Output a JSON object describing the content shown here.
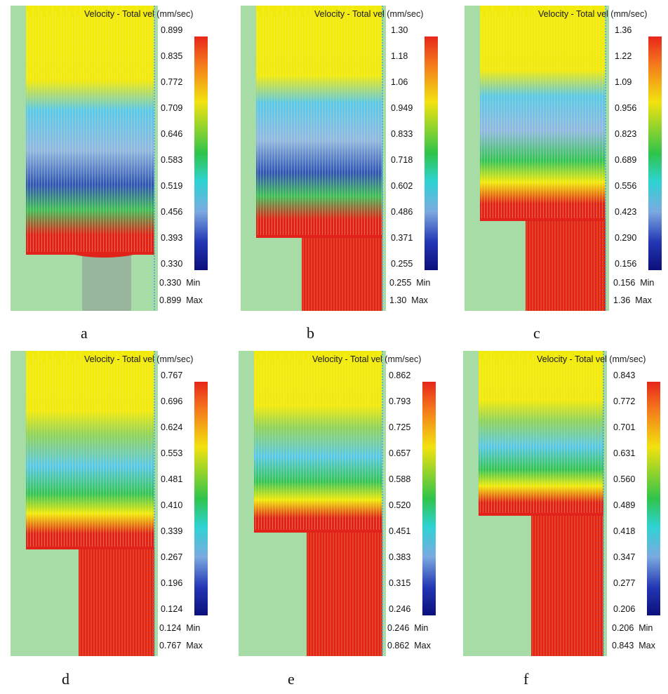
{
  "panels": [
    {
      "id": "a",
      "caption": "a",
      "title": "Velocity - Total vel (mm/sec)",
      "ticks": [
        "0.899",
        "0.835",
        "0.772",
        "0.709",
        "0.646",
        "0.583",
        "0.519",
        "0.456",
        "0.393",
        "0.330"
      ],
      "min": "0.330",
      "max": "0.899",
      "min_label": "Min",
      "max_label": "Max",
      "neck_fraction": 0.0
    },
    {
      "id": "b",
      "caption": "b",
      "title": "Velocity - Total vel (mm/sec)",
      "ticks": [
        "1.30",
        "1.18",
        "1.06",
        "0.949",
        "0.833",
        "0.718",
        "0.602",
        "0.486",
        "0.371",
        "0.255"
      ],
      "min": "0.255",
      "max": "1.30",
      "min_label": "Min",
      "max_label": "Max",
      "neck_fraction": 0.2
    },
    {
      "id": "c",
      "caption": "c",
      "title": "Velocity - Total vel (mm/sec)",
      "ticks": [
        "1.36",
        "1.22",
        "1.09",
        "0.956",
        "0.823",
        "0.689",
        "0.556",
        "0.423",
        "0.290",
        "0.156"
      ],
      "min": "0.156",
      "max": "1.36",
      "min_label": "Min",
      "max_label": "Max",
      "neck_fraction": 0.4
    },
    {
      "id": "d",
      "caption": "d",
      "title": "Velocity - Total vel (mm/sec)",
      "ticks": [
        "0.767",
        "0.696",
        "0.624",
        "0.553",
        "0.481",
        "0.410",
        "0.339",
        "0.267",
        "0.196",
        "0.124"
      ],
      "min": "0.124",
      "max": "0.767",
      "min_label": "Min",
      "max_label": "Max",
      "neck_fraction": 0.6
    },
    {
      "id": "e",
      "caption": "e",
      "title": "Velocity - Total vel (mm/sec)",
      "ticks": [
        "0.862",
        "0.793",
        "0.725",
        "0.657",
        "0.588",
        "0.520",
        "0.451",
        "0.383",
        "0.315",
        "0.246"
      ],
      "min": "0.246",
      "max": "0.862",
      "min_label": "Min",
      "max_label": "Max",
      "neck_fraction": 0.8
    },
    {
      "id": "f",
      "caption": "f",
      "title": "Velocity - Total vel (mm/sec)",
      "ticks": [
        "0.843",
        "0.772",
        "0.701",
        "0.631",
        "0.560",
        "0.489",
        "0.418",
        "0.347",
        "0.277",
        "0.206"
      ],
      "min": "0.206",
      "max": "0.843",
      "min_label": "Min",
      "max_label": "Max",
      "neck_fraction": 1.0
    }
  ],
  "colors": {
    "background_green": "#a8dca6",
    "mold_gray": "#93ad98",
    "vector_yellow": "#f2ea0a",
    "vector_cyan": "#57c8ec",
    "vector_blue": "#2e55b8",
    "vector_red": "#e0221a"
  }
}
